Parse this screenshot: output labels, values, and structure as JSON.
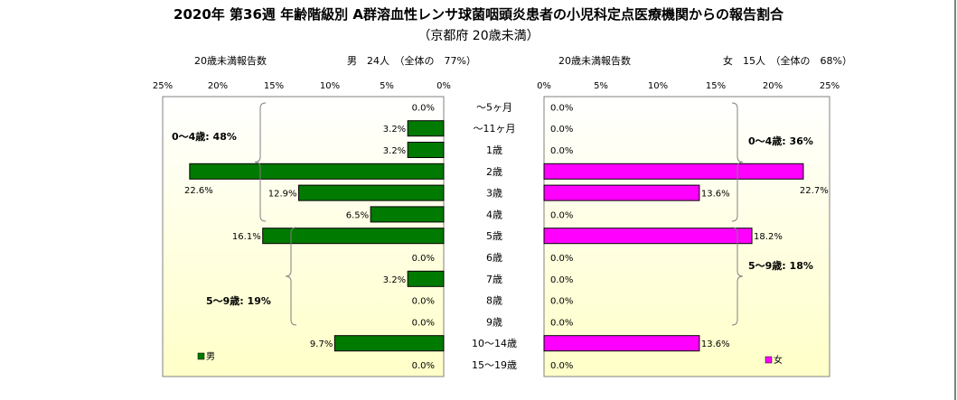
{
  "title": "2020年 第36週 年齢階級別 A群溶血性レンサ球菌咽頭炎患者の小児科定点医療機関からの報告割合",
  "subtitle": "（京都府 20歳未満）",
  "colors": {
    "male": "#007a00",
    "female": "#ff00ff",
    "panel_grad_top": "#ffffff",
    "panel_grad_bottom": "#ffffc0"
  },
  "chart_data": [
    {
      "type": "bar",
      "orientation": "horizontal-reversed",
      "header_left": "20歳未満報告数",
      "header_right": "男　24人　（全体の　77%）",
      "legend": "男",
      "categories": [
        "～5ヶ月",
        "～11ヶ月",
        "1歳",
        "2歳",
        "3歳",
        "4歳",
        "5歳",
        "6歳",
        "7歳",
        "8歳",
        "9歳",
        "10～14歳",
        "15～19歳"
      ],
      "values": [
        0.0,
        3.2,
        3.2,
        22.6,
        12.9,
        6.5,
        16.1,
        0.0,
        3.2,
        0.0,
        0.0,
        9.7,
        0.0
      ],
      "value_labels": [
        "0.0%",
        "3.2%",
        "3.2%",
        "22.6%",
        "12.9%",
        "6.5%",
        "16.1%",
        "0.0%",
        "3.2%",
        "0.0%",
        "0.0%",
        "9.7%",
        "0.0%"
      ],
      "ticks": [
        "25%",
        "20%",
        "15%",
        "10%",
        "5%",
        "0%"
      ],
      "xlim": [
        0,
        25
      ],
      "annotations": [
        "0～4歳: 48%",
        "5～9歳: 19%"
      ]
    },
    {
      "type": "bar",
      "orientation": "horizontal",
      "header_left": "20歳未満報告数",
      "header_right": "女　15人　（全体の　68%）",
      "legend": "女",
      "categories": [
        "～5ヶ月",
        "～11ヶ月",
        "1歳",
        "2歳",
        "3歳",
        "4歳",
        "5歳",
        "6歳",
        "7歳",
        "8歳",
        "9歳",
        "10～14歳",
        "15～19歳"
      ],
      "values": [
        0.0,
        0.0,
        0.0,
        22.7,
        13.6,
        0.0,
        18.2,
        0.0,
        0.0,
        0.0,
        0.0,
        13.6,
        0.0
      ],
      "value_labels": [
        "0.0%",
        "0.0%",
        "0.0%",
        "22.7%",
        "13.6%",
        "0.0%",
        "18.2%",
        "0.0%",
        "0.0%",
        "0.0%",
        "0.0%",
        "13.6%",
        "0.0%"
      ],
      "ticks": [
        "0%",
        "5%",
        "10%",
        "15%",
        "20%",
        "25%"
      ],
      "xlim": [
        0,
        25
      ],
      "annotations": [
        "0～4歳: 36%",
        "5～9歳: 18%"
      ]
    }
  ]
}
